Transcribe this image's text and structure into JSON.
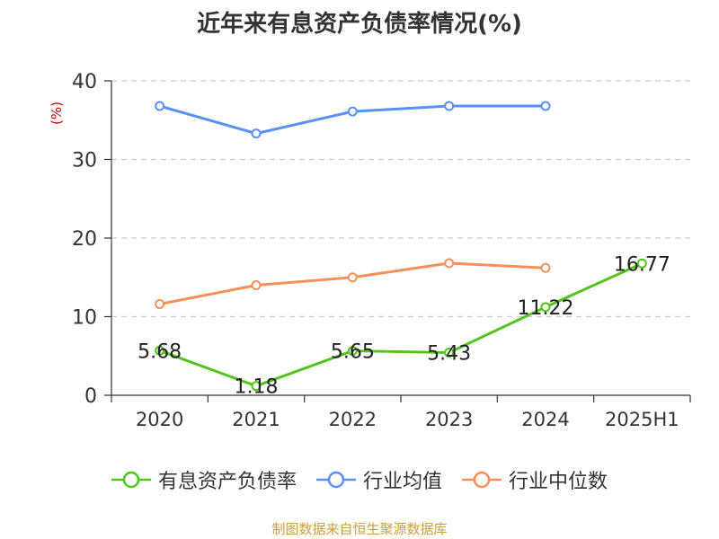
{
  "title": "近年来有息资产负债率情况(%)",
  "y_unit": "(%)",
  "source": "制图数据来自恒生聚源数据库",
  "colors": {
    "green": "#52c41a",
    "blue": "#5b8ff9",
    "orange": "#f6905a",
    "grid": "#cccccc",
    "unit": "#cc0000"
  },
  "chart_data": {
    "type": "line",
    "categories": [
      "2020",
      "2021",
      "2022",
      "2023",
      "2024",
      "2025H1"
    ],
    "ylim": [
      0,
      40
    ],
    "yticks": [
      0,
      10,
      20,
      30,
      40
    ],
    "ylabel": "(%)",
    "grid": true,
    "legend_position": "bottom",
    "series": [
      {
        "name": "有息资产负债率",
        "color": "#52c41a",
        "values": [
          5.68,
          1.18,
          5.65,
          5.43,
          11.22,
          16.77
        ],
        "labels": [
          "5.68",
          "1.18",
          "5.65",
          "5.43",
          "11.22",
          "16.77"
        ]
      },
      {
        "name": "行业均值",
        "color": "#5b8ff9",
        "values": [
          36.8,
          33.3,
          36.1,
          36.8,
          36.8,
          null
        ]
      },
      {
        "name": "行业中位数",
        "color": "#f6905a",
        "values": [
          11.6,
          14.0,
          15.0,
          16.8,
          16.2,
          null
        ]
      }
    ]
  }
}
